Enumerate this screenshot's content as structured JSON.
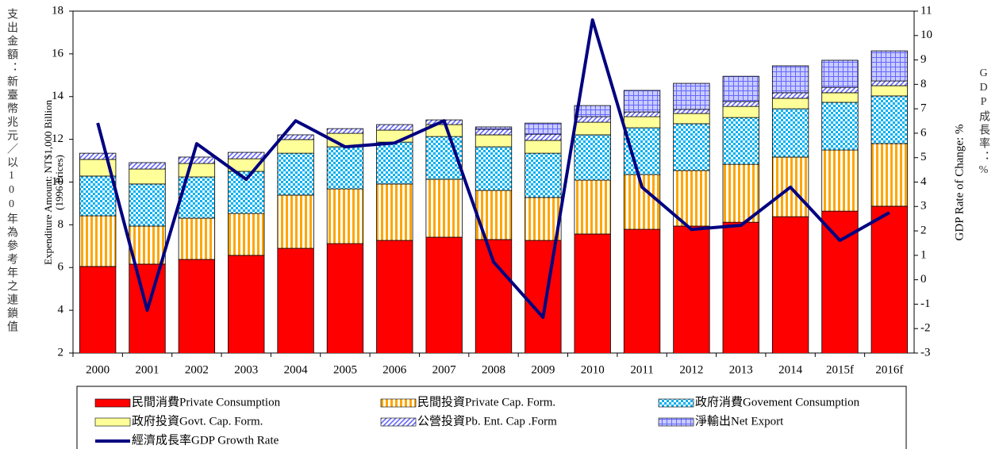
{
  "chart_data": {
    "type": "stacked-bar-line",
    "left_note": "支出金額：新臺幣兆元／以100年為參考年之連鎖值",
    "ylabel": "Expenditure Amount: NT$1,000 Billion",
    "ylabel_sub": "(1996 Prices)",
    "y2label": "GDP Rate of Change: %",
    "right_note": "GDP成長率：%",
    "categories": [
      "2000",
      "2001",
      "2002",
      "2003",
      "2004",
      "2005",
      "2006",
      "2007",
      "2008",
      "2009",
      "2010",
      "2011",
      "2012",
      "2013",
      "2014",
      "2015f",
      "2016f"
    ],
    "ylim": [
      2,
      18
    ],
    "yticks": [
      2,
      4,
      6,
      8,
      10,
      12,
      14,
      16,
      18
    ],
    "y2lim": [
      -3,
      11
    ],
    "y2ticks": [
      -3,
      -2,
      -1,
      0,
      1,
      2,
      3,
      4,
      5,
      6,
      7,
      8,
      9,
      10,
      11
    ],
    "series": [
      {
        "name": "民間消費Private Consumption",
        "color": "#ff0000",
        "pattern": "solid",
        "values": [
          6.05,
          6.16,
          6.38,
          6.57,
          6.9,
          7.12,
          7.27,
          7.42,
          7.31,
          7.27,
          7.57,
          7.79,
          7.94,
          8.12,
          8.38,
          8.64,
          8.87
        ]
      },
      {
        "name": "民間投資Private Cap. Form.",
        "color": "#ffa500",
        "pattern": "vstripe",
        "values": [
          2.37,
          1.78,
          1.93,
          1.96,
          2.49,
          2.56,
          2.64,
          2.71,
          2.3,
          2.01,
          2.52,
          2.56,
          2.6,
          2.71,
          2.79,
          2.86,
          2.93
        ]
      },
      {
        "name": "政府消費Govement Consumption",
        "color": "#00b0f0",
        "pattern": "check",
        "values": [
          1.86,
          1.97,
          1.93,
          1.97,
          1.96,
          1.97,
          1.96,
          2.0,
          2.04,
          2.07,
          2.12,
          2.19,
          2.19,
          2.19,
          2.26,
          2.23,
          2.23
        ]
      },
      {
        "name": "政府投資Govt. Cap. Form.",
        "color": "#ffff99",
        "pattern": "solid",
        "values": [
          0.78,
          0.7,
          0.63,
          0.59,
          0.64,
          0.63,
          0.56,
          0.56,
          0.56,
          0.6,
          0.59,
          0.52,
          0.48,
          0.52,
          0.49,
          0.45,
          0.48
        ]
      },
      {
        "name": "公營投資Pb. Ent. Cap .Form",
        "color": "#6666ff",
        "pattern": "diag",
        "values": [
          0.29,
          0.3,
          0.3,
          0.3,
          0.22,
          0.22,
          0.26,
          0.22,
          0.26,
          0.29,
          0.26,
          0.22,
          0.19,
          0.23,
          0.26,
          0.25,
          0.22
        ]
      },
      {
        "name": "淨輸出Net Export",
        "color": "#6666ff",
        "pattern": "grid",
        "values": [
          null,
          null,
          null,
          null,
          null,
          null,
          null,
          null,
          0.11,
          0.52,
          0.52,
          1.01,
          1.22,
          1.18,
          1.26,
          1.27,
          1.41
        ]
      },
      {
        "name": "經濟成長率GDP Growth Rate",
        "color": "#000080",
        "kind": "line",
        "axis": "y2",
        "values": [
          6.42,
          -1.25,
          5.57,
          4.11,
          6.51,
          5.44,
          5.6,
          6.51,
          0.73,
          -1.54,
          10.64,
          3.79,
          2.06,
          2.23,
          3.79,
          1.61,
          2.75
        ]
      }
    ]
  }
}
